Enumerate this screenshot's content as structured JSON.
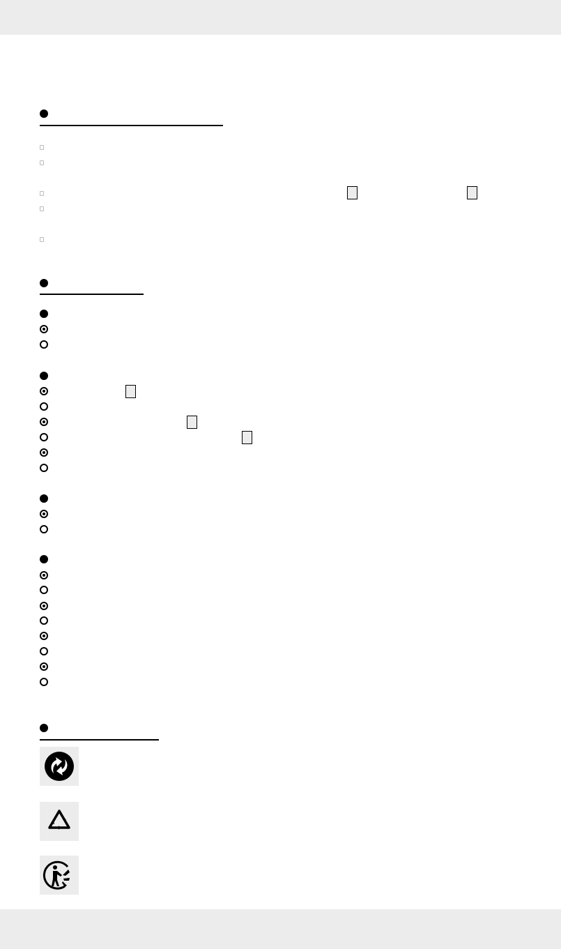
{
  "sections": [
    {
      "heading": ""
    },
    {
      "heading": ""
    },
    {
      "heading": ""
    }
  ],
  "symbols": [
    "green-dot-icon",
    "recycling-triangle-icon",
    "triman-icon"
  ],
  "colors": {
    "page_bar": "#ececec",
    "marker": "#000000",
    "reference_box": "#ececec"
  }
}
